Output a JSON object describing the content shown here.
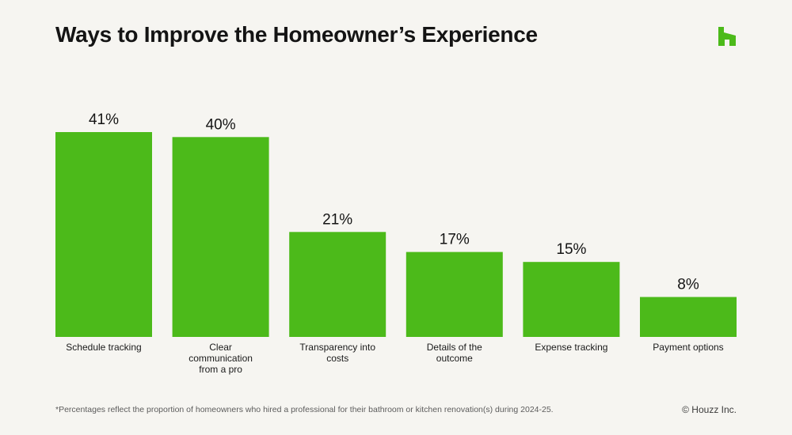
{
  "header": {
    "title": "Ways to Improve the Homeowner’s Experience"
  },
  "logo": {
    "icon": "houzz-logo-icon",
    "color": "#4cba1a"
  },
  "colors": {
    "bar": "#4cba1a",
    "background": "#f6f5f1"
  },
  "chart_data": {
    "type": "bar",
    "categories": [
      [
        "Schedule tracking"
      ],
      [
        "Clear",
        "communication",
        "from a pro"
      ],
      [
        "Transparency into",
        "costs"
      ],
      [
        "Details of the",
        "outcome"
      ],
      [
        "Expense tracking"
      ],
      [
        "Payment options"
      ]
    ],
    "values": [
      41,
      40,
      21,
      17,
      15,
      8
    ],
    "value_labels": [
      "41%",
      "40%",
      "21%",
      "17%",
      "15%",
      "8%"
    ],
    "unit": "%",
    "title": "Ways to Improve the Homeowner’s Experience",
    "xlabel": "",
    "ylabel": "",
    "ylim": [
      0,
      41
    ],
    "grid": false,
    "legend": "none"
  },
  "footer": {
    "footnote": "*Percentages reflect the proportion of homeowners who hired a professional for their bathroom or kitchen renovation(s) during 2024-25.",
    "copyright": "© Houzz Inc."
  }
}
